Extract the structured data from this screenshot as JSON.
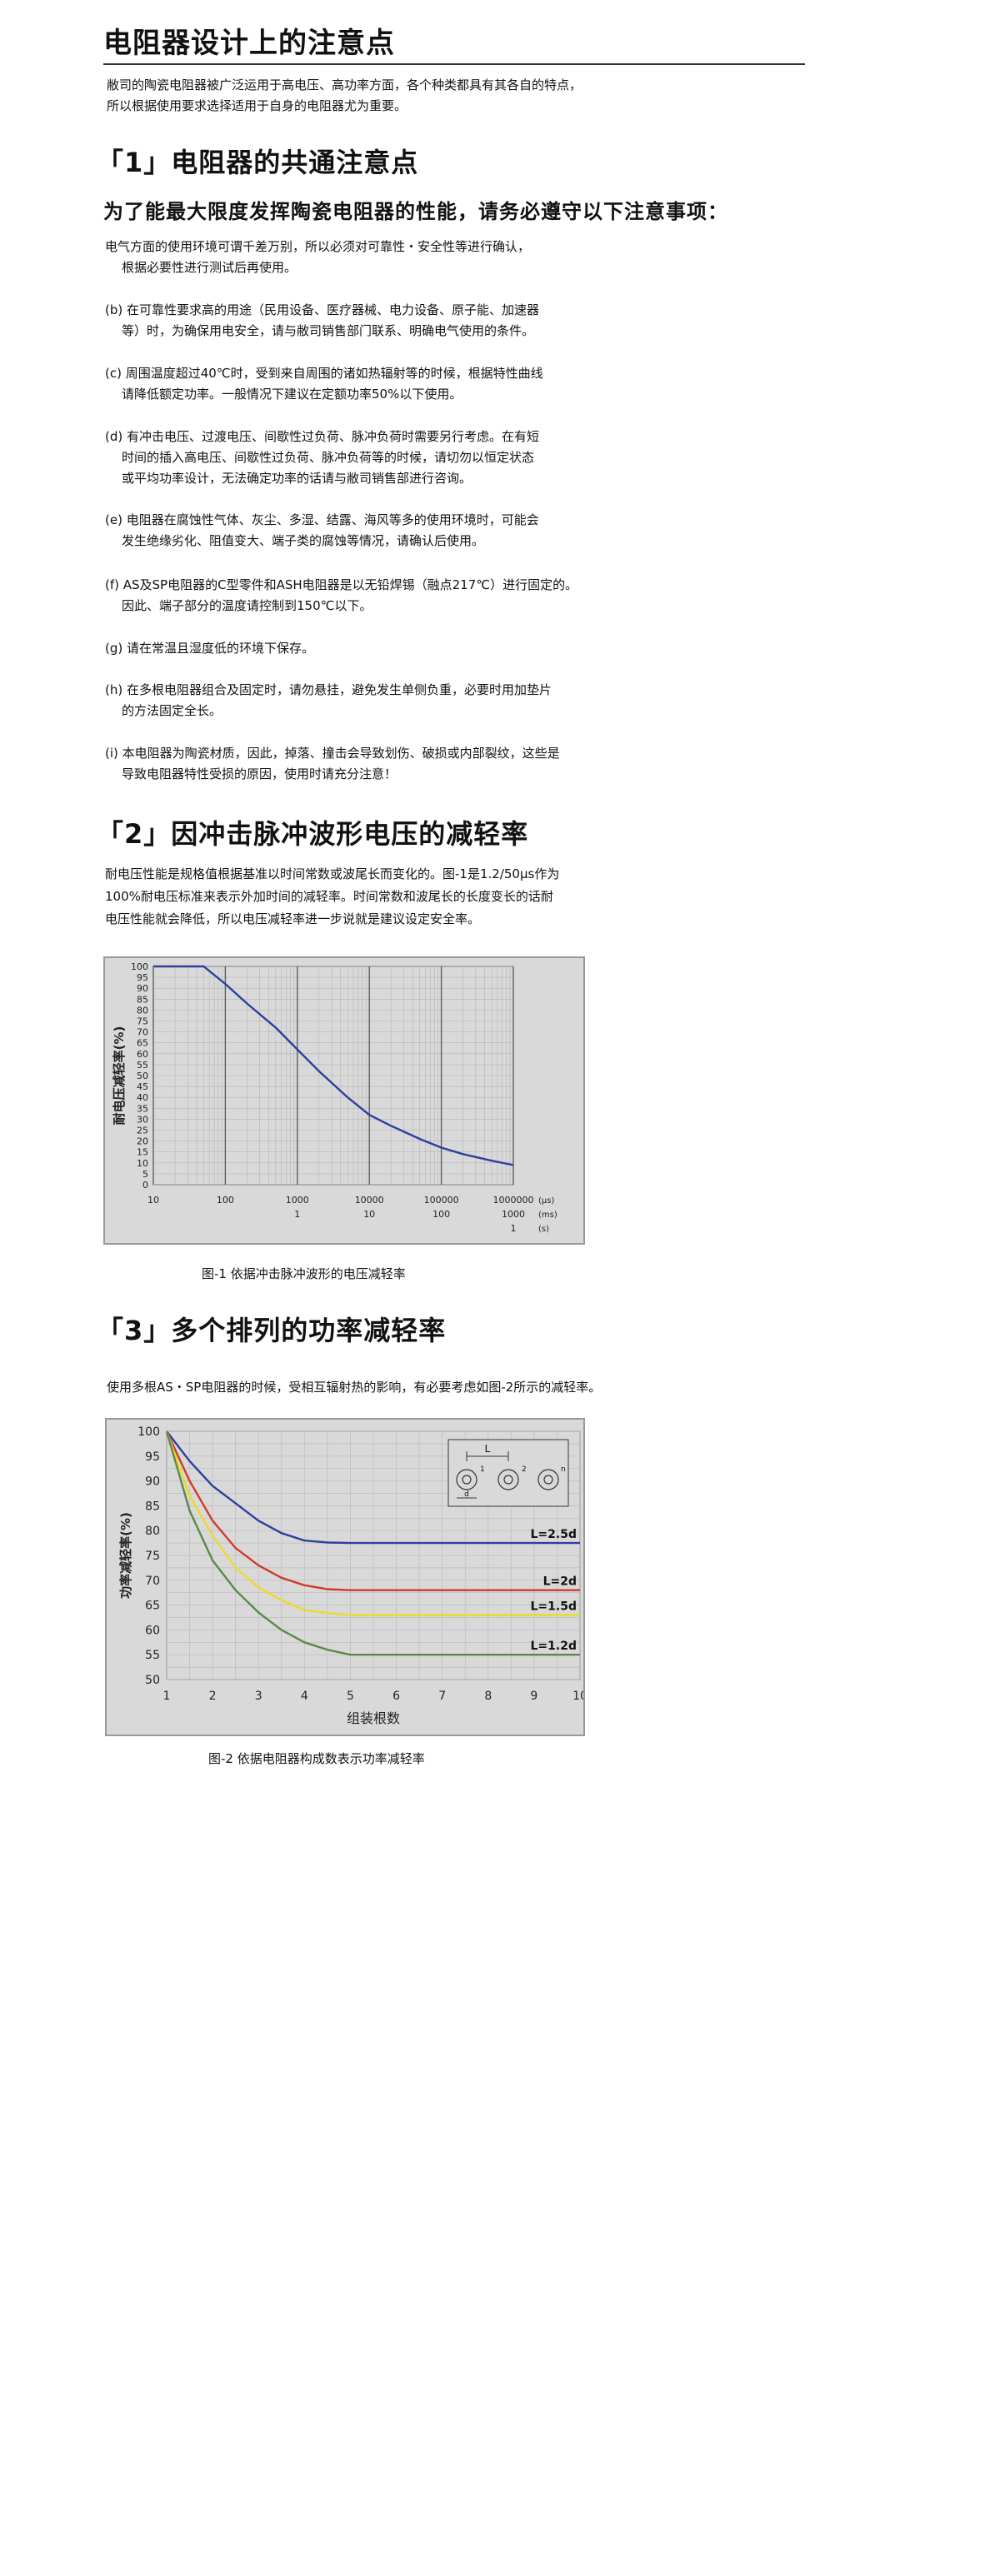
{
  "page_title": "电阻器设计上的注意点",
  "intro_lines": [
    "敝司的陶瓷电阻器被广泛运用于高电压、高功率方面，各个种类都具有其各自的特点，",
    "所以根据使用要求选择适用于自身的电阻器尤为重要。"
  ],
  "section1": {
    "heading": "「1」电阻器的共通注意点",
    "subheading": "为了能最大限度发挥陶瓷电阻器的性能，请务必遵守以下注意事项：",
    "items": [
      {
        "l1": "电气方面的使用环境可谓千差万别，所以必须对可靠性・安全性等进行确认，",
        "l2": "根据必要性进行测试后再使用。",
        "l3": ""
      },
      {
        "l1": "(b) 在可靠性要求高的用途（民用设备、医疗器械、电力设备、原子能、加速器",
        "l2": "等）时，为确保用电安全，请与敝司销售部门联系、明确电气使用的条件。",
        "l3": ""
      },
      {
        "l1": "(c) 周围温度超过40℃时，受到来自周围的诸如热辐射等的时候，根据特性曲线",
        "l2": "请降低额定功率。一般情况下建议在定额功率50%以下使用。",
        "l3": ""
      },
      {
        "l1": "(d) 有冲击电压、过渡电压、间歇性过负荷、脉冲负荷时需要另行考虑。在有短",
        "l2": "时间的插入高电压、间歇性过负荷、脉冲负荷等的时候，请切勿以恒定状态",
        "l3": "或平均功率设计，无法确定功率的话请与敝司销售部进行咨询。"
      },
      {
        "l1": "(e) 电阻器在腐蚀性气体、灰尘、多湿、结露、海风等多的使用环境时，可能会",
        "l2": "发生绝缘劣化、阻值变大、端子类的腐蚀等情况，请确认后使用。",
        "l3": ""
      },
      {
        "l1": "(f) AS及SP电阻器的C型零件和ASH电阻器是以无铅焊锡（融点217℃）进行固定的。",
        "l2": "因此、端子部分的温度请控制到150℃以下。",
        "l3": ""
      },
      {
        "l1": "(g) 请在常温且湿度低的环境下保存。",
        "l2": "",
        "l3": ""
      },
      {
        "l1": "(h) 在多根电阻器组合及固定时，请勿悬挂，避免发生单侧负重，必要时用加垫片",
        "l2": "的方法固定全长。",
        "l3": ""
      },
      {
        "l1": "(i) 本电阻器为陶瓷材质，因此，掉落、撞击会导致划伤、破损或内部裂纹，这些是",
        "l2": "导致电阻器特性受损的原因，使用时请充分注意！",
        "l3": ""
      }
    ]
  },
  "section2": {
    "heading": "「2」因冲击脉冲波形电压的减轻率",
    "para_lines": [
      "耐电压性能是规格值根据基准以时间常数或波尾长而变化的。图-1是1.2/50μs作为",
      "100%耐电压标准来表示外加时间的减轻率。时间常数和波尾长的长度变长的话耐",
      "电压性能就会降低，所以电压减轻率进一步说就是建议设定安全率。"
    ],
    "caption": "图-1 依据冲击脉冲波形的电压减轻率"
  },
  "section3": {
    "heading": "「3」多个排列的功率减轻率",
    "para": "使用多根AS・SP电阻器的时候，受相互辐射热的影响，有必要考虑如图-2所示的减轻率。",
    "caption": "图-2 依据电阻器构成数表示功率减轻率"
  },
  "chart_data": [
    {
      "type": "line",
      "ylabel": "耐电压减轻率(%)",
      "ylim": [
        0,
        100
      ],
      "y_ticks": [
        0,
        5,
        10,
        15,
        20,
        25,
        30,
        35,
        40,
        45,
        50,
        55,
        60,
        65,
        70,
        75,
        80,
        85,
        90,
        95,
        100
      ],
      "x_scale": "log",
      "xlim": [
        10,
        1000000
      ],
      "x_tick_rows": [
        {
          "labels": [
            "10",
            "100",
            "1000",
            "10000",
            "100000",
            "1000000"
          ],
          "positions": [
            10,
            100,
            1000,
            10000,
            100000,
            1000000
          ],
          "unit": "(μs)"
        },
        {
          "labels": [
            "1",
            "10",
            "100",
            "1000"
          ],
          "positions": [
            1000,
            10000,
            100000,
            1000000
          ],
          "unit": "(ms)"
        },
        {
          "labels": [
            "1"
          ],
          "positions": [
            1000000
          ],
          "unit": "(s)"
        }
      ],
      "series": [
        {
          "color": "#2b3f9e",
          "x": [
            10,
            50,
            100,
            200,
            500,
            1000,
            2000,
            5000,
            10000,
            20000,
            50000,
            100000,
            200000,
            500000,
            1000000
          ],
          "y": [
            100,
            100,
            92,
            83,
            72,
            62,
            52,
            40,
            32,
            27,
            21,
            17,
            14,
            11,
            9
          ]
        }
      ],
      "grid": true
    },
    {
      "type": "line",
      "xlabel": "组装根数",
      "ylabel": "功率减轻率(%)",
      "xlim": [
        1,
        10
      ],
      "ylim": [
        50,
        100
      ],
      "x_ticks": [
        1,
        2,
        3,
        4,
        5,
        6,
        7,
        8,
        9,
        10
      ],
      "y_ticks": [
        50,
        55,
        60,
        65,
        70,
        75,
        80,
        85,
        90,
        95,
        100
      ],
      "inset_labels": {
        "L": "L",
        "d": "d",
        "n1": "1",
        "n2": "2",
        "nn": "n"
      },
      "series": [
        {
          "name": "L=2.5d",
          "color": "#2b3f9e",
          "x": [
            1,
            1.5,
            2,
            2.5,
            3,
            3.5,
            4,
            4.5,
            5,
            5.5,
            6,
            7,
            8,
            9,
            10
          ],
          "y": [
            100,
            94,
            89,
            85.5,
            82,
            79.5,
            78,
            77.6,
            77.5,
            77.5,
            77.5,
            77.5,
            77.5,
            77.5,
            77.5
          ]
        },
        {
          "name": "L=2d",
          "color": "#d23a2a",
          "x": [
            1,
            1.5,
            2,
            2.5,
            3,
            3.5,
            4,
            4.5,
            5,
            5.5,
            6,
            7,
            8,
            9,
            10
          ],
          "y": [
            100,
            90,
            82,
            76.5,
            73,
            70.5,
            69,
            68.2,
            68,
            68,
            68,
            68,
            68,
            68,
            68
          ]
        },
        {
          "name": "L=1.5d",
          "color": "#e8dc2a",
          "x": [
            1,
            1.5,
            2,
            2.5,
            3,
            3.5,
            4,
            4.5,
            5,
            5.5,
            6,
            7,
            8,
            9,
            10
          ],
          "y": [
            100,
            87,
            79,
            72.5,
            68.5,
            66,
            64,
            63.4,
            63,
            63,
            63,
            63,
            63,
            63,
            63
          ]
        },
        {
          "name": "L=1.2d",
          "color": "#5a8a4a",
          "x": [
            1,
            1.5,
            2,
            2.5,
            3,
            3.5,
            4,
            4.5,
            5,
            5.5,
            6,
            7,
            8,
            9,
            10
          ],
          "y": [
            100,
            84,
            74,
            68,
            63.5,
            60,
            57.5,
            56,
            55,
            55,
            55,
            55,
            55,
            55,
            55
          ]
        }
      ],
      "grid": true,
      "legend": "line labels at right"
    }
  ]
}
